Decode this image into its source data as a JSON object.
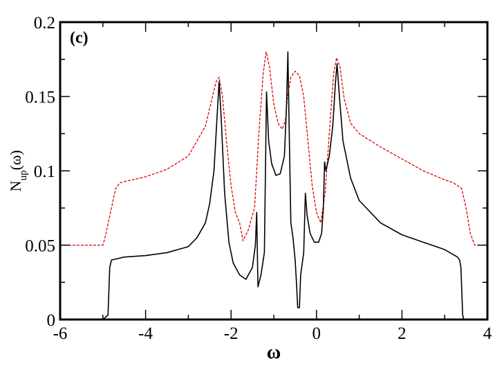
{
  "chart_data": {
    "type": "line",
    "panel_label": "(c)",
    "xlabel": "ω",
    "ylabel_main": "N",
    "ylabel_sub": "up",
    "ylabel_tail": "(ω)",
    "xlim": [
      -6,
      4
    ],
    "ylim": [
      0,
      0.2
    ],
    "x_ticks": [
      -6,
      -4,
      -2,
      0,
      2,
      4
    ],
    "x_tick_labels": [
      "-6",
      "-4",
      "-2",
      "0",
      "2",
      "4"
    ],
    "y_ticks": [
      0,
      0.05,
      0.1,
      0.15,
      0.2
    ],
    "y_tick_labels": [
      "0",
      "0.05",
      "0.1",
      "0.15",
      "0.2"
    ],
    "grid": false,
    "legend": "none",
    "series": [
      {
        "color": "#000000",
        "style": "solid",
        "points": [
          [
            -6.0,
            0.0
          ],
          [
            -5.0,
            0.0
          ],
          [
            -4.88,
            0.003
          ],
          [
            -4.84,
            0.035
          ],
          [
            -4.8,
            0.04
          ],
          [
            -4.5,
            0.042
          ],
          [
            -4.0,
            0.043
          ],
          [
            -3.5,
            0.045
          ],
          [
            -3.0,
            0.049
          ],
          [
            -2.8,
            0.055
          ],
          [
            -2.6,
            0.065
          ],
          [
            -2.5,
            0.078
          ],
          [
            -2.4,
            0.1
          ],
          [
            -2.33,
            0.135
          ],
          [
            -2.28,
            0.16
          ],
          [
            -2.23,
            0.135
          ],
          [
            -2.15,
            0.085
          ],
          [
            -2.05,
            0.052
          ],
          [
            -1.95,
            0.038
          ],
          [
            -1.8,
            0.03
          ],
          [
            -1.65,
            0.027
          ],
          [
            -1.5,
            0.035
          ],
          [
            -1.43,
            0.05
          ],
          [
            -1.4,
            0.072
          ],
          [
            -1.37,
            0.022
          ],
          [
            -1.3,
            0.03
          ],
          [
            -1.22,
            0.045
          ],
          [
            -1.17,
            0.153
          ],
          [
            -1.12,
            0.12
          ],
          [
            -1.05,
            0.105
          ],
          [
            -0.95,
            0.097
          ],
          [
            -0.85,
            0.098
          ],
          [
            -0.75,
            0.11
          ],
          [
            -0.7,
            0.145
          ],
          [
            -0.67,
            0.18
          ],
          [
            -0.64,
            0.13
          ],
          [
            -0.6,
            0.065
          ],
          [
            -0.55,
            0.055
          ],
          [
            -0.5,
            0.04
          ],
          [
            -0.47,
            0.025
          ],
          [
            -0.44,
            0.008
          ],
          [
            -0.4,
            0.008
          ],
          [
            -0.37,
            0.03
          ],
          [
            -0.3,
            0.045
          ],
          [
            -0.26,
            0.085
          ],
          [
            -0.22,
            0.07
          ],
          [
            -0.15,
            0.058
          ],
          [
            -0.05,
            0.052
          ],
          [
            0.05,
            0.052
          ],
          [
            0.12,
            0.058
          ],
          [
            0.16,
            0.075
          ],
          [
            0.19,
            0.106
          ],
          [
            0.22,
            0.1
          ],
          [
            0.3,
            0.11
          ],
          [
            0.38,
            0.13
          ],
          [
            0.44,
            0.158
          ],
          [
            0.48,
            0.172
          ],
          [
            0.53,
            0.152
          ],
          [
            0.62,
            0.12
          ],
          [
            0.8,
            0.095
          ],
          [
            1.0,
            0.08
          ],
          [
            1.5,
            0.065
          ],
          [
            2.0,
            0.057
          ],
          [
            2.5,
            0.052
          ],
          [
            3.0,
            0.047
          ],
          [
            3.3,
            0.042
          ],
          [
            3.35,
            0.04
          ],
          [
            3.38,
            0.035
          ],
          [
            3.42,
            0.003
          ],
          [
            3.45,
            0.0
          ],
          [
            4.0,
            0.0
          ]
        ]
      },
      {
        "color": "#dd0000",
        "style": "dashed",
        "points": [
          [
            -6.0,
            0.05
          ],
          [
            -5.0,
            0.05
          ],
          [
            -4.95,
            0.055
          ],
          [
            -4.8,
            0.075
          ],
          [
            -4.7,
            0.088
          ],
          [
            -4.6,
            0.092
          ],
          [
            -4.0,
            0.096
          ],
          [
            -3.5,
            0.101
          ],
          [
            -3.0,
            0.11
          ],
          [
            -2.8,
            0.12
          ],
          [
            -2.6,
            0.13
          ],
          [
            -2.45,
            0.148
          ],
          [
            -2.35,
            0.16
          ],
          [
            -2.28,
            0.163
          ],
          [
            -2.2,
            0.15
          ],
          [
            -2.1,
            0.118
          ],
          [
            -2.0,
            0.09
          ],
          [
            -1.9,
            0.072
          ],
          [
            -1.8,
            0.065
          ],
          [
            -1.72,
            0.053
          ],
          [
            -1.6,
            0.06
          ],
          [
            -1.45,
            0.075
          ],
          [
            -1.35,
            0.125
          ],
          [
            -1.25,
            0.165
          ],
          [
            -1.18,
            0.18
          ],
          [
            -1.1,
            0.17
          ],
          [
            -1.0,
            0.145
          ],
          [
            -0.9,
            0.132
          ],
          [
            -0.8,
            0.128
          ],
          [
            -0.72,
            0.135
          ],
          [
            -0.68,
            0.15
          ],
          [
            -0.6,
            0.163
          ],
          [
            -0.5,
            0.167
          ],
          [
            -0.4,
            0.164
          ],
          [
            -0.3,
            0.15
          ],
          [
            -0.2,
            0.12
          ],
          [
            -0.1,
            0.09
          ],
          [
            0.0,
            0.072
          ],
          [
            0.1,
            0.065
          ],
          [
            0.2,
            0.085
          ],
          [
            0.3,
            0.125
          ],
          [
            0.4,
            0.165
          ],
          [
            0.47,
            0.176
          ],
          [
            0.55,
            0.17
          ],
          [
            0.65,
            0.148
          ],
          [
            0.8,
            0.132
          ],
          [
            1.0,
            0.125
          ],
          [
            1.5,
            0.116
          ],
          [
            2.0,
            0.108
          ],
          [
            2.5,
            0.1
          ],
          [
            3.0,
            0.094
          ],
          [
            3.2,
            0.092
          ],
          [
            3.4,
            0.088
          ],
          [
            3.5,
            0.075
          ],
          [
            3.6,
            0.058
          ],
          [
            3.7,
            0.05
          ],
          [
            4.0,
            0.05
          ]
        ]
      }
    ]
  }
}
